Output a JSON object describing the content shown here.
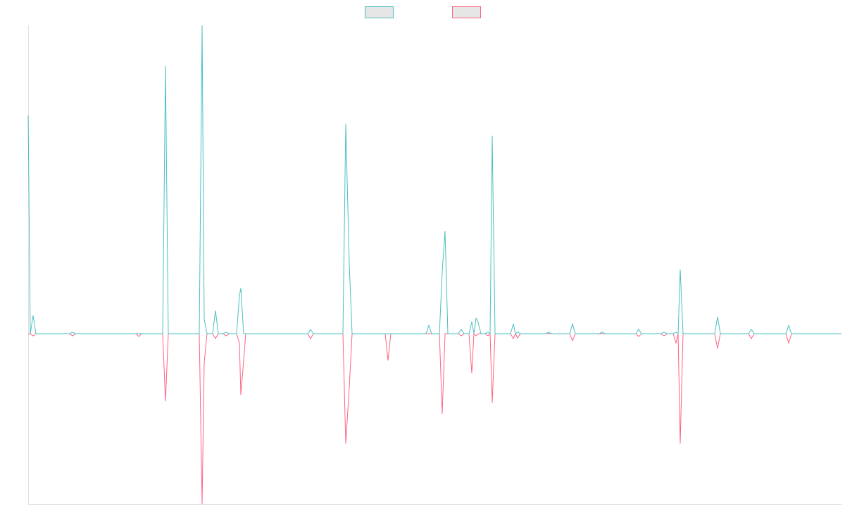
{
  "chart_data": {
    "type": "line",
    "x": [
      0,
      3,
      7,
      11,
      59,
      63,
      67,
      153,
      157,
      161,
      191,
      195,
      199,
      243,
      247,
      250,
      254,
      262,
      266,
      270,
      277,
      281,
      285,
      296,
      300,
      302,
      306,
      309,
      397,
      401,
      405,
      447,
      451,
      456,
      460,
      507,
      511,
      515,
      565,
      569,
      573,
      584,
      588,
      592,
      596,
      611,
      615,
      619,
      626,
      630,
      633,
      636,
      639,
      643,
      649,
      653,
      656,
      659,
      663,
      685,
      689,
      692,
      695,
      699,
      735,
      739,
      743,
      769,
      773,
      777,
      811,
      815,
      819,
      863,
      867,
      871,
      899,
      903,
      907,
      916,
      920,
      923,
      926,
      930,
      975,
      979,
      983,
      1023,
      1027,
      1031,
      1076,
      1080,
      1084,
      1155
    ],
    "series": [
      {
        "color": "#4bc0c0",
        "values": [
          70.8,
          0,
          5.9,
          0,
          0,
          0.5,
          0,
          0,
          0,
          0,
          0,
          86.8,
          0,
          0,
          100,
          4.6,
          0,
          0,
          7.5,
          0,
          0,
          0.5,
          0,
          0,
          12.3,
          14.8,
          0,
          0,
          0,
          1.4,
          0,
          0,
          68,
          22.6,
          0,
          0,
          0,
          0,
          0,
          2.7,
          0,
          0,
          20.1,
          33.3,
          0,
          0,
          1.4,
          0,
          0,
          3.9,
          0,
          5,
          3.7,
          0,
          0,
          0.5,
          0,
          64.2,
          0,
          0,
          3.2,
          0,
          0.5,
          0,
          0,
          0.5,
          0,
          0,
          3.2,
          0,
          0,
          0.5,
          0,
          0,
          1.4,
          0,
          0,
          0.5,
          0,
          0,
          0.5,
          0,
          20.8,
          0,
          0,
          5.5,
          0,
          0,
          1.4,
          0,
          0,
          2.7,
          0,
          0
        ]
      },
      {
        "color": "#ff6384",
        "values": [
          0,
          0,
          -0.7,
          0,
          0,
          -0.7,
          0,
          0,
          -0.9,
          0,
          0,
          -21.9,
          0,
          0,
          -55.25,
          -9.4,
          0,
          0,
          -1.6,
          0,
          0,
          -0.7,
          0,
          0,
          -3,
          -19.9,
          -8.7,
          0,
          0,
          -1.6,
          0,
          0,
          -35.6,
          -17.4,
          0,
          0,
          -8.7,
          0,
          0,
          0,
          0,
          0,
          -26,
          0,
          0,
          0,
          -0.7,
          0,
          0,
          -12.8,
          0,
          -0.7,
          0,
          0,
          0,
          -0.7,
          0,
          -22.4,
          0,
          0,
          -1.6,
          0,
          -1.4,
          0,
          0,
          0,
          0,
          0,
          -2.3,
          0,
          0,
          0,
          0,
          0,
          -0.9,
          0,
          0,
          -0.7,
          0,
          0,
          -3,
          0,
          -35.6,
          0,
          0,
          -4.8,
          0,
          0,
          -1.6,
          0,
          0,
          -3,
          0,
          0
        ]
      }
    ],
    "xlim": [
      0,
      1155
    ],
    "ylim": [
      -55.25,
      100
    ]
  }
}
